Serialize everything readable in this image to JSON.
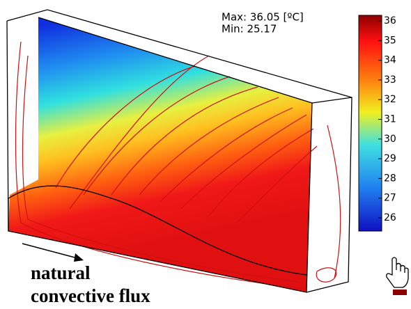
{
  "info": {
    "max": "Max: 36.05 [ºC]",
    "min": "Min: 25.17"
  },
  "colorbar": {
    "ticks": [
      26,
      27,
      28,
      29,
      30,
      31,
      32,
      33,
      34,
      35,
      36
    ]
  },
  "caption": [
    "natural",
    "convective flux"
  ]
}
